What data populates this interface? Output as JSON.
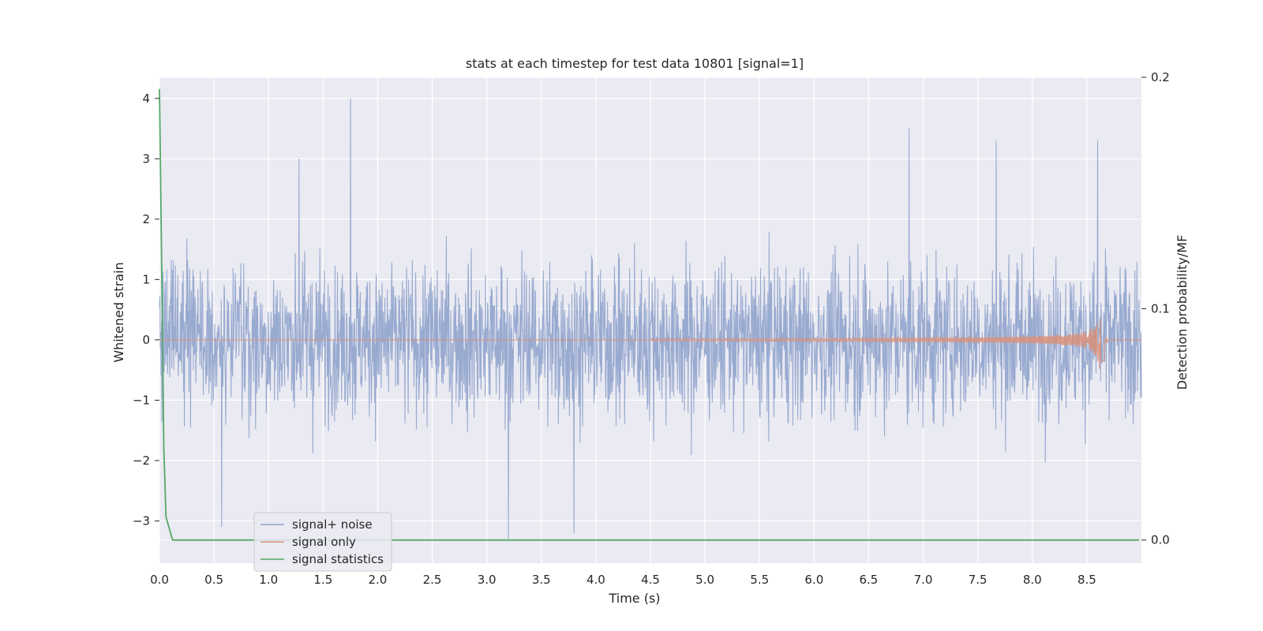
{
  "chart_data": {
    "type": "line",
    "title": "stats at each timestep for test data 10801 [signal=1]",
    "xlabel": "Time (s)",
    "ylabel": "Whitened strain",
    "ylabel_right": "Detection probability/MF",
    "xlim": [
      0.0,
      9.0
    ],
    "ylim": [
      -3.7,
      4.35
    ],
    "ylim_right": [
      -0.01,
      0.2
    ],
    "x_ticks": [
      "0.0",
      "0.5",
      "1.0",
      "1.5",
      "2.0",
      "2.5",
      "3.0",
      "3.5",
      "4.0",
      "4.5",
      "5.0",
      "5.5",
      "6.0",
      "6.5",
      "7.0",
      "7.5",
      "8.0",
      "8.5"
    ],
    "y_ticks": [
      "−3",
      "−2",
      "−1",
      "0",
      "1",
      "2",
      "3",
      "4"
    ],
    "y_ticks_right": [
      "0.0",
      "0.1",
      "0.2"
    ],
    "grid": true,
    "legend_position": "lower left",
    "colors": {
      "background": "#eaeaf2",
      "grid": "#ffffff",
      "noise": "#8fa3cc",
      "signal": "#d9917a",
      "statistics": "#55a868"
    },
    "series": [
      {
        "name": "signal+ noise",
        "axis": "left",
        "description_values": {
          "typical_envelope": [
            -1.8,
            2.0
          ],
          "noted_peaks": [
            [
              1.75,
              4.0
            ],
            [
              6.87,
              3.5
            ],
            [
              7.67,
              3.3
            ],
            [
              8.6,
              3.3
            ],
            [
              1.28,
              3.0
            ],
            [
              3.2,
              -3.3
            ],
            [
              3.8,
              -3.2
            ],
            [
              0.57,
              -3.1
            ]
          ]
        }
      },
      {
        "name": "signal only",
        "axis": "left",
        "description_values": {
          "chirp_start": 4.5,
          "merger_time": 8.63,
          "peak_amplitude": 0.48
        }
      },
      {
        "name": "signal statistics",
        "axis": "right",
        "x": [
          0.0,
          0.02,
          0.04,
          0.06,
          0.12,
          8.98
        ],
        "y": [
          0.195,
          0.12,
          0.04,
          0.01,
          0.0,
          0.0
        ]
      }
    ]
  }
}
